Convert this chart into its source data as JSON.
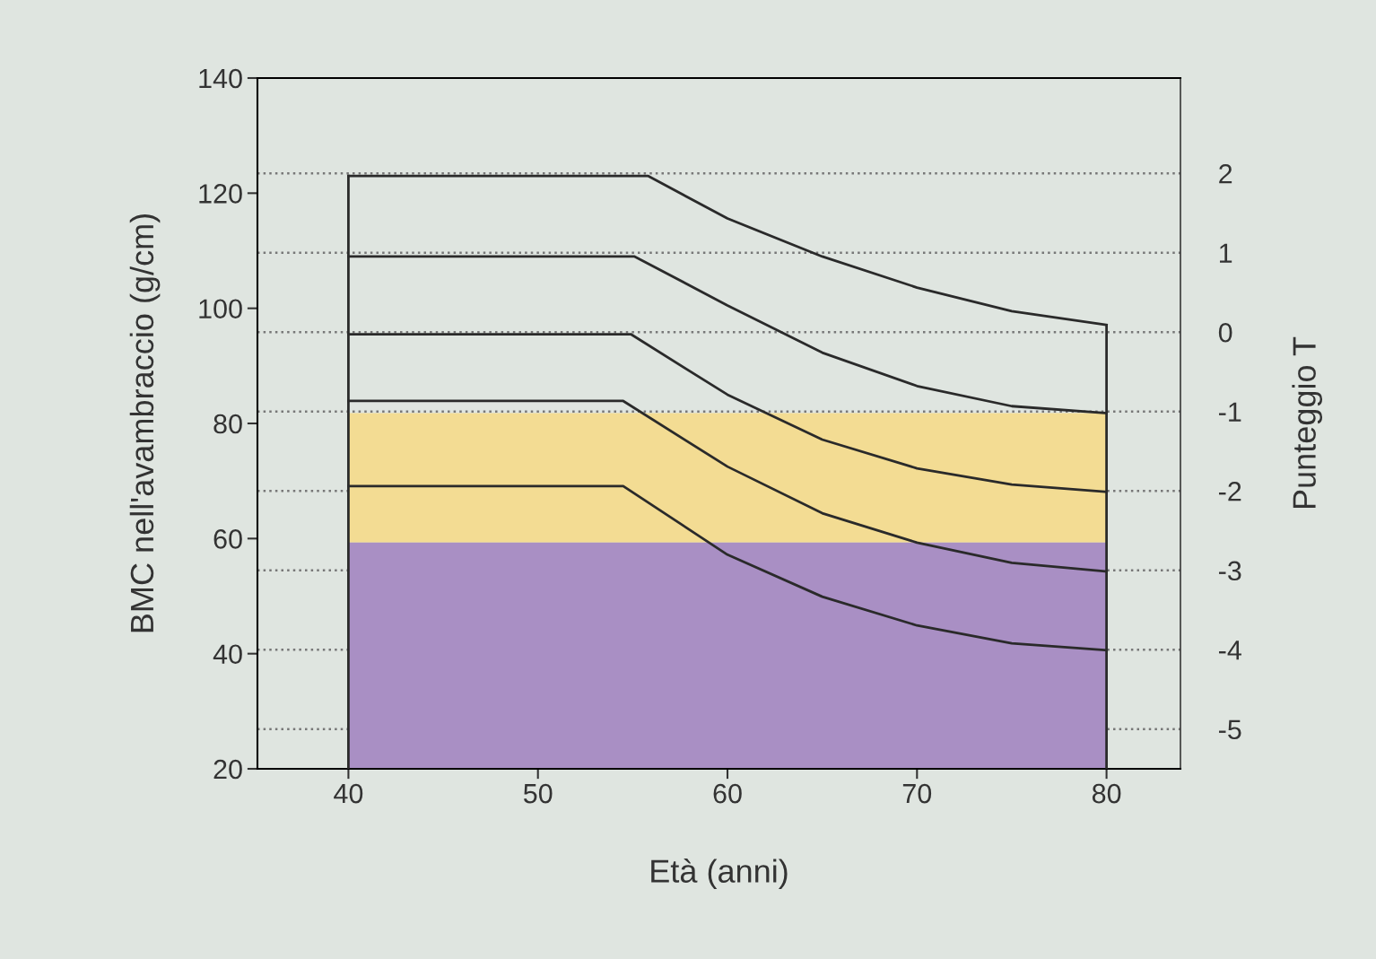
{
  "chart_data": {
    "type": "line",
    "xlabel": "Età (anni)",
    "ylabel": "BMC nell'avambraccio (g/cm)",
    "y2label": "Punteggio T",
    "xlim": [
      35.2,
      83.9
    ],
    "xticks": [
      40,
      50,
      60,
      70,
      80
    ],
    "ylim": [
      20,
      140
    ],
    "yticks": [
      20,
      40,
      60,
      80,
      100,
      120,
      140
    ],
    "y2lim": [
      -5.5,
      3.2
    ],
    "y2ticks": [
      2,
      1,
      0,
      -1,
      -2,
      -3,
      -4,
      -5
    ],
    "grid": false,
    "legend": false,
    "marker": "none",
    "line_style": "solid",
    "series": [
      {
        "color": "#2a2a2a",
        "x": [
          40,
          55.8,
          60,
          65,
          70,
          75,
          80
        ],
        "values": [
          123,
          123,
          115.6,
          109,
          103.6,
          99.5,
          97.1
        ]
      },
      {
        "color": "#2a2a2a",
        "x": [
          40,
          55.1,
          60,
          65,
          70,
          75,
          80
        ],
        "values": [
          109,
          109,
          100.5,
          92.3,
          86.5,
          83,
          81.8
        ]
      },
      {
        "color": "#2a2a2a",
        "x": [
          40,
          54.9,
          60,
          65,
          70,
          75,
          80
        ],
        "values": [
          95.5,
          95.5,
          85,
          77.2,
          72.2,
          69.4,
          68.1
        ]
      },
      {
        "color": "#2a2a2a",
        "x": [
          40,
          54.5,
          60,
          65,
          70,
          75,
          80
        ],
        "values": [
          83.9,
          83.9,
          72.5,
          64.4,
          59.3,
          55.8,
          54.3
        ]
      },
      {
        "color": "#2a2a2a",
        "x": [
          40,
          54.5,
          60,
          65,
          70,
          75,
          80
        ],
        "values": [
          69.1,
          69.1,
          57.2,
          49.9,
          44.9,
          41.8,
          40.6
        ]
      }
    ],
    "bands": [
      {
        "axis": "y",
        "from": 59.3,
        "to": 81.8,
        "color": "#f3dc93"
      },
      {
        "axis": "y",
        "from": 20,
        "to": 59.3,
        "color": "#a98fc4"
      }
    ],
    "ref_lines": [
      {
        "axis": "x",
        "value": 40,
        "color": "#2a2a2a",
        "line_style": "solid"
      },
      {
        "axis": "x",
        "value": 80,
        "color": "#2a2a2a",
        "line_style": "solid"
      },
      {
        "axis": "y2",
        "value": 2,
        "color": "#777777",
        "line_style": "dotted"
      },
      {
        "axis": "y2",
        "value": 1,
        "color": "#777777",
        "line_style": "dotted"
      },
      {
        "axis": "y2",
        "value": 0,
        "color": "#777777",
        "line_style": "dotted"
      },
      {
        "axis": "y2",
        "value": -1,
        "color": "#777777",
        "line_style": "dotted"
      },
      {
        "axis": "y2",
        "value": -2,
        "color": "#777777",
        "line_style": "dotted"
      },
      {
        "axis": "y2",
        "value": -3,
        "color": "#777777",
        "line_style": "dotted"
      },
      {
        "axis": "y2",
        "value": -4,
        "color": "#777777",
        "line_style": "dotted"
      },
      {
        "axis": "y2",
        "value": -5,
        "color": "#777777",
        "line_style": "dotted"
      }
    ]
  }
}
